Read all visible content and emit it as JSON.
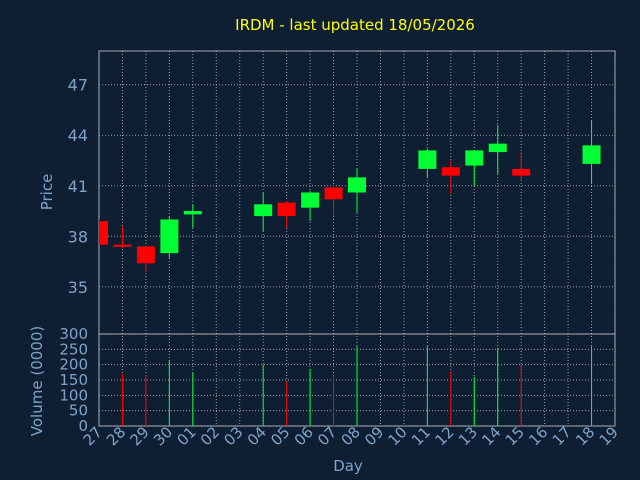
{
  "title": "IRDM - last updated 18/05/2026",
  "colors": {
    "background": "#0f1f33",
    "title": "#ffff00",
    "axis_text": "#7fa3c8",
    "grid": "#c8c8c8",
    "up": "#00ff33",
    "down": "#ff0000"
  },
  "chart_data": [
    {
      "type": "candlestick",
      "ylabel": "Price",
      "ylim": [
        32.2,
        49.0
      ],
      "yticks": [
        "35",
        "38",
        "41",
        "44",
        "47"
      ],
      "grid": true,
      "candles": [
        {
          "day": "27",
          "open": 38.9,
          "high": 39.0,
          "low": 37.5,
          "close": 37.5
        },
        {
          "day": "28",
          "open": 37.5,
          "high": 38.6,
          "low": 37.3,
          "close": 37.4
        },
        {
          "day": "29",
          "open": 37.4,
          "high": 37.4,
          "low": 35.9,
          "close": 36.4
        },
        {
          "day": "30",
          "open": 37.0,
          "high": 39.2,
          "low": 36.7,
          "close": 39.0
        },
        {
          "day": "01",
          "open": 39.3,
          "high": 39.9,
          "low": 38.5,
          "close": 39.5
        },
        {
          "day": "04",
          "open": 39.2,
          "high": 40.6,
          "low": 38.3,
          "close": 39.9
        },
        {
          "day": "05",
          "open": 40.0,
          "high": 40.1,
          "low": 38.5,
          "close": 39.2
        },
        {
          "day": "06",
          "open": 39.7,
          "high": 40.7,
          "low": 38.9,
          "close": 40.6
        },
        {
          "day": "07",
          "open": 40.9,
          "high": 41.0,
          "low": 39.2,
          "close": 40.2
        },
        {
          "day": "08",
          "open": 40.6,
          "high": 42.0,
          "low": 39.4,
          "close": 41.5
        },
        {
          "day": "11",
          "open": 42.0,
          "high": 43.2,
          "low": 41.5,
          "close": 43.1
        },
        {
          "day": "12",
          "open": 42.1,
          "high": 42.5,
          "low": 40.5,
          "close": 41.6
        },
        {
          "day": "13",
          "open": 42.2,
          "high": 43.1,
          "low": 41.0,
          "close": 43.1
        },
        {
          "day": "14",
          "open": 43.0,
          "high": 44.6,
          "low": 41.7,
          "close": 43.5
        },
        {
          "day": "15",
          "open": 42.0,
          "high": 43.0,
          "low": 41.3,
          "close": 41.6
        },
        {
          "day": "18",
          "open": 42.3,
          "high": 44.9,
          "low": 41.1,
          "close": 43.4
        }
      ]
    },
    {
      "type": "bar",
      "ylabel": "Volume (0000)",
      "xlabel": "Day",
      "ylim": [
        0,
        300
      ],
      "yticks": [
        "0",
        "50",
        "100",
        "150",
        "200",
        "250",
        "300"
      ],
      "categories": [
        "27",
        "28",
        "29",
        "30",
        "01",
        "02",
        "03",
        "04",
        "05",
        "06",
        "07",
        "08",
        "09",
        "10",
        "11",
        "12",
        "13",
        "14",
        "15",
        "16",
        "17",
        "18",
        "19"
      ],
      "volumes": [
        {
          "day": "28",
          "value": 170,
          "direction": "down"
        },
        {
          "day": "29",
          "value": 165,
          "direction": "down"
        },
        {
          "day": "30",
          "value": 215,
          "direction": "up"
        },
        {
          "day": "01",
          "value": 175,
          "direction": "up"
        },
        {
          "day": "04",
          "value": 200,
          "direction": "up"
        },
        {
          "day": "05",
          "value": 145,
          "direction": "down"
        },
        {
          "day": "06",
          "value": 185,
          "direction": "up"
        },
        {
          "day": "07",
          "value": 165,
          "direction": "down"
        },
        {
          "day": "08",
          "value": 260,
          "direction": "up"
        },
        {
          "day": "11",
          "value": 260,
          "direction": "up"
        },
        {
          "day": "12",
          "value": 180,
          "direction": "down"
        },
        {
          "day": "13",
          "value": 160,
          "direction": "up"
        },
        {
          "day": "14",
          "value": 255,
          "direction": "up"
        },
        {
          "day": "15",
          "value": 200,
          "direction": "down"
        },
        {
          "day": "18",
          "value": 260,
          "direction": "up"
        }
      ]
    }
  ]
}
